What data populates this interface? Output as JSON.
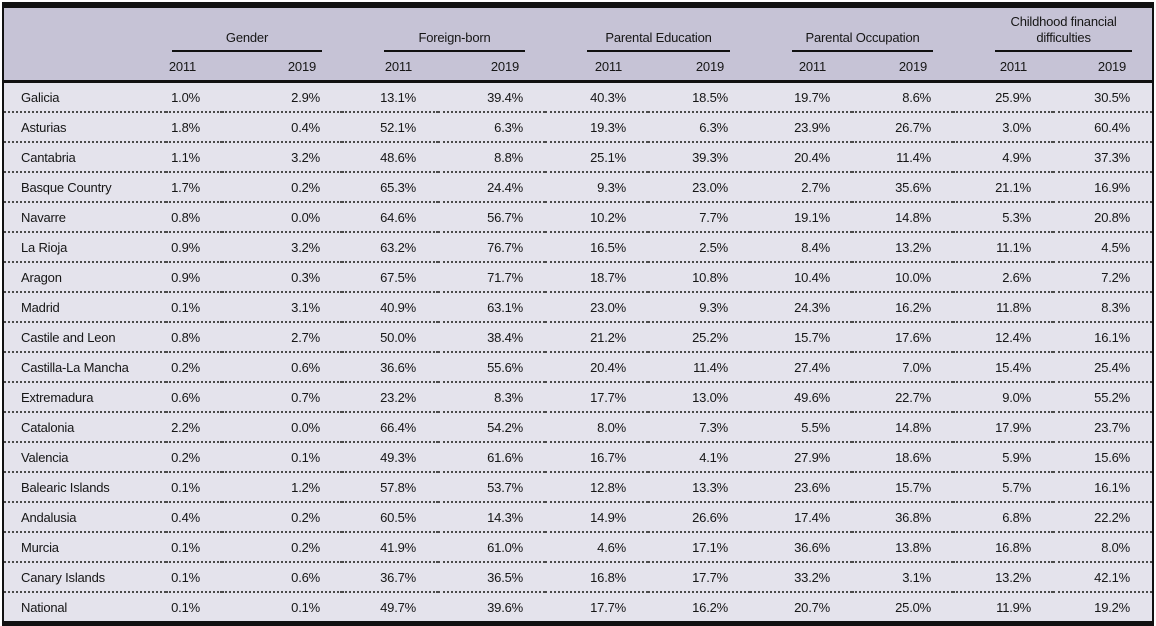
{
  "colors": {
    "header_bg": "#c6c3d6",
    "body_bg": "#e4e3ec",
    "border": "#111111",
    "text": "#161616"
  },
  "table": {
    "region_column_header": "",
    "groups": [
      {
        "label": "Gender",
        "years": [
          "2011",
          "2019"
        ]
      },
      {
        "label": "Foreign-born",
        "years": [
          "2011",
          "2019"
        ]
      },
      {
        "label": "Parental Education",
        "years": [
          "2011",
          "2019"
        ]
      },
      {
        "label": "Parental Occupation",
        "years": [
          "2011",
          "2019"
        ]
      },
      {
        "label": "Childhood financial difficulties",
        "years": [
          "2011",
          "2019"
        ]
      }
    ],
    "rows": [
      {
        "region": "Galicia",
        "values": [
          "1.0%",
          "2.9%",
          "13.1%",
          "39.4%",
          "40.3%",
          "18.5%",
          "19.7%",
          "8.6%",
          "25.9%",
          "30.5%"
        ]
      },
      {
        "region": "Asturias",
        "values": [
          "1.8%",
          "0.4%",
          "52.1%",
          "6.3%",
          "19.3%",
          "6.3%",
          "23.9%",
          "26.7%",
          "3.0%",
          "60.4%"
        ]
      },
      {
        "region": "Cantabria",
        "values": [
          "1.1%",
          "3.2%",
          "48.6%",
          "8.8%",
          "25.1%",
          "39.3%",
          "20.4%",
          "11.4%",
          "4.9%",
          "37.3%"
        ]
      },
      {
        "region": "Basque Country",
        "values": [
          "1.7%",
          "0.2%",
          "65.3%",
          "24.4%",
          "9.3%",
          "23.0%",
          "2.7%",
          "35.6%",
          "21.1%",
          "16.9%"
        ]
      },
      {
        "region": "Navarre",
        "values": [
          "0.8%",
          "0.0%",
          "64.6%",
          "56.7%",
          "10.2%",
          "7.7%",
          "19.1%",
          "14.8%",
          "5.3%",
          "20.8%"
        ]
      },
      {
        "region": "La Rioja",
        "values": [
          "0.9%",
          "3.2%",
          "63.2%",
          "76.7%",
          "16.5%",
          "2.5%",
          "8.4%",
          "13.2%",
          "11.1%",
          "4.5%"
        ]
      },
      {
        "region": "Aragon",
        "values": [
          "0.9%",
          "0.3%",
          "67.5%",
          "71.7%",
          "18.7%",
          "10.8%",
          "10.4%",
          "10.0%",
          "2.6%",
          "7.2%"
        ]
      },
      {
        "region": "Madrid",
        "values": [
          "0.1%",
          "3.1%",
          "40.9%",
          "63.1%",
          "23.0%",
          "9.3%",
          "24.3%",
          "16.2%",
          "11.8%",
          "8.3%"
        ]
      },
      {
        "region": "Castile and Leon",
        "values": [
          "0.8%",
          "2.7%",
          "50.0%",
          "38.4%",
          "21.2%",
          "25.2%",
          "15.7%",
          "17.6%",
          "12.4%",
          "16.1%"
        ]
      },
      {
        "region": "Castilla-La Mancha",
        "values": [
          "0.2%",
          "0.6%",
          "36.6%",
          "55.6%",
          "20.4%",
          "11.4%",
          "27.4%",
          "7.0%",
          "15.4%",
          "25.4%"
        ]
      },
      {
        "region": "Extremadura",
        "values": [
          "0.6%",
          "0.7%",
          "23.2%",
          "8.3%",
          "17.7%",
          "13.0%",
          "49.6%",
          "22.7%",
          "9.0%",
          "55.2%"
        ]
      },
      {
        "region": "Catalonia",
        "values": [
          "2.2%",
          "0.0%",
          "66.4%",
          "54.2%",
          "8.0%",
          "7.3%",
          "5.5%",
          "14.8%",
          "17.9%",
          "23.7%"
        ]
      },
      {
        "region": "Valencia",
        "values": [
          "0.2%",
          "0.1%",
          "49.3%",
          "61.6%",
          "16.7%",
          "4.1%",
          "27.9%",
          "18.6%",
          "5.9%",
          "15.6%"
        ]
      },
      {
        "region": "Balearic Islands",
        "values": [
          "0.1%",
          "1.2%",
          "57.8%",
          "53.7%",
          "12.8%",
          "13.3%",
          "23.6%",
          "15.7%",
          "5.7%",
          "16.1%"
        ]
      },
      {
        "region": "Andalusia",
        "values": [
          "0.4%",
          "0.2%",
          "60.5%",
          "14.3%",
          "14.9%",
          "26.6%",
          "17.4%",
          "36.8%",
          "6.8%",
          "22.2%"
        ]
      },
      {
        "region": "Murcia",
        "values": [
          "0.1%",
          "0.2%",
          "41.9%",
          "61.0%",
          "4.6%",
          "17.1%",
          "36.6%",
          "13.8%",
          "16.8%",
          "8.0%"
        ]
      },
      {
        "region": "Canary Islands",
        "values": [
          "0.1%",
          "0.6%",
          "36.7%",
          "36.5%",
          "16.8%",
          "17.7%",
          "33.2%",
          "3.1%",
          "13.2%",
          "42.1%"
        ]
      },
      {
        "region": "National",
        "values": [
          "0.1%",
          "0.1%",
          "49.7%",
          "39.6%",
          "17.7%",
          "16.2%",
          "20.7%",
          "25.0%",
          "11.9%",
          "19.2%"
        ]
      }
    ]
  }
}
